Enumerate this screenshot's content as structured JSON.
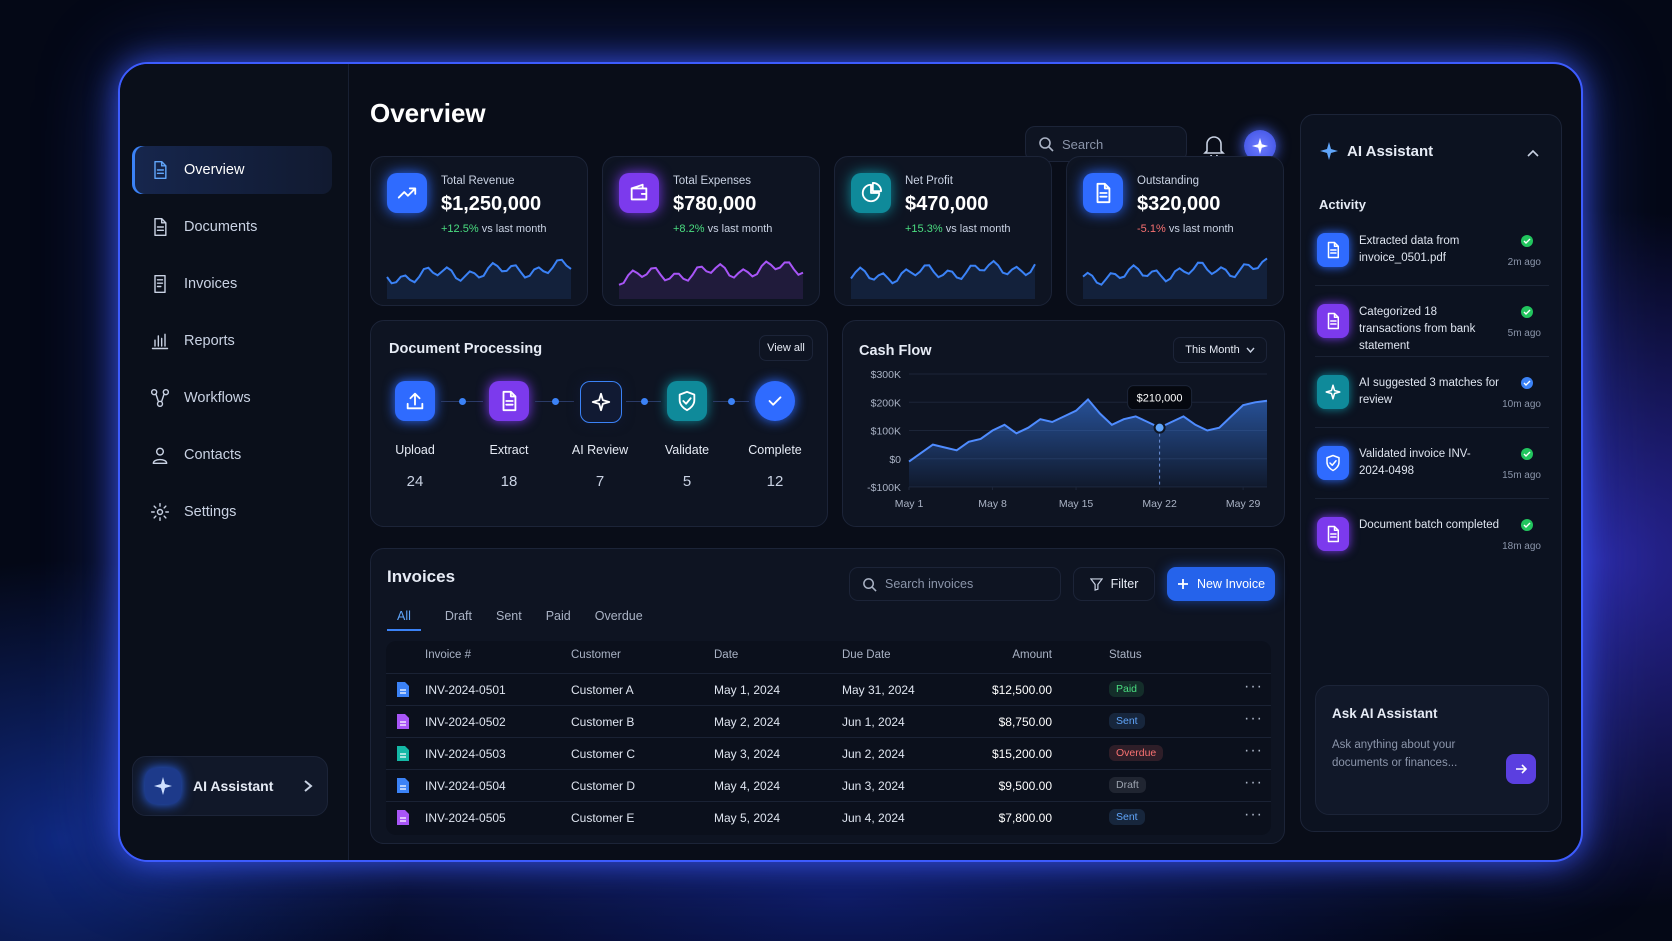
{
  "sidebar": {
    "nav": [
      "Overview",
      "Documents",
      "Invoices",
      "Reports",
      "Workflows",
      "Contacts",
      "Settings"
    ],
    "assistant": "AI Assistant"
  },
  "header": {
    "title": "Overview",
    "search": "Search"
  },
  "stats": [
    {
      "label": "Total Revenue",
      "value": "$1,250,000",
      "change": "+12.5%",
      "note": "vs last month",
      "color": "#2f6bff",
      "line_color": "#3b82f6",
      "change_color": "#4ade80"
    },
    {
      "label": "Total Expenses",
      "value": "$780,000",
      "change": "+8.2%",
      "note": "vs last month",
      "color": "#7c3aed",
      "line_color": "#a855f7",
      "change_color": "#4ade80"
    },
    {
      "label": "Net Profit",
      "value": "$470,000",
      "change": "+15.3%",
      "note": "vs last month",
      "color": "#0f8a9a",
      "line_color": "#3b82f6",
      "change_color": "#4ade80"
    },
    {
      "label": "Outstanding",
      "value": "$320,000",
      "change": "-5.1%",
      "note": "vs last month",
      "color": "#2f6bff",
      "line_color": "#3b82f6",
      "change_color": "#f87171"
    }
  ],
  "processing": {
    "title": "Document Processing",
    "action": "View all",
    "steps": [
      {
        "label": "Upload",
        "count": "24"
      },
      {
        "label": "Extract",
        "count": "18"
      },
      {
        "label": "AI Review",
        "count": "7"
      },
      {
        "label": "Validate",
        "count": "5"
      },
      {
        "label": "Complete",
        "count": "12"
      }
    ]
  },
  "cash_flow": {
    "type": "area",
    "title": "Cash Flow",
    "period": "This Month",
    "annotation": "$210,000",
    "x": [
      1,
      2,
      3,
      4,
      5,
      6,
      7,
      8,
      9,
      10,
      11,
      12,
      13,
      14,
      15,
      16,
      17,
      18,
      19,
      20,
      21,
      22,
      23,
      24,
      25,
      26,
      27,
      28,
      29,
      30,
      31
    ],
    "values": [
      -10000,
      20000,
      50000,
      40000,
      30000,
      60000,
      70000,
      100000,
      120000,
      90000,
      110000,
      140000,
      130000,
      150000,
      170000,
      210000,
      160000,
      120000,
      140000,
      150000,
      130000,
      110000,
      130000,
      150000,
      120000,
      100000,
      110000,
      150000,
      190000,
      200000,
      205000
    ],
    "xlim": [
      1,
      31
    ],
    "xticks": [
      {
        "value": 1,
        "label": "May 1"
      },
      {
        "value": 8,
        "label": "May 8"
      },
      {
        "value": 15,
        "label": "May 15"
      },
      {
        "value": 22,
        "label": "May 22"
      },
      {
        "value": 29,
        "label": "May 29"
      }
    ],
    "ylim": [
      -100000,
      300000
    ],
    "yticks": [
      {
        "value": 300000,
        "label": "$300K"
      },
      {
        "value": 200000,
        "label": "$200K"
      },
      {
        "value": 100000,
        "label": "$100K"
      },
      {
        "value": 0,
        "label": "$0"
      },
      {
        "value": -100000,
        "label": "-$100K"
      }
    ],
    "color": "#3b82f6",
    "grid": true
  },
  "invoices": {
    "title": "Invoices",
    "search": "Search invoices",
    "filter": "Filter",
    "new": "New Invoice",
    "tabs": [
      "All",
      "Draft",
      "Sent",
      "Paid",
      "Overdue"
    ],
    "columns": [
      "Invoice #",
      "Customer",
      "Date",
      "Due Date",
      "Amount",
      "Status"
    ],
    "rows": [
      {
        "invoice": "INV-2024-0501",
        "customer": "Customer A",
        "date": "May 1, 2024",
        "due": "May 31, 2024",
        "amount": "$12,500.00",
        "status": "Paid",
        "status_color": "#4ade80",
        "icon_color": "#3b82f6"
      },
      {
        "invoice": "INV-2024-0502",
        "customer": "Customer B",
        "date": "May 2, 2024",
        "due": "Jun 1, 2024",
        "amount": "$8,750.00",
        "status": "Sent",
        "status_color": "#60a5fa",
        "icon_color": "#a855f7"
      },
      {
        "invoice": "INV-2024-0503",
        "customer": "Customer C",
        "date": "May 3, 2024",
        "due": "Jun 2, 2024",
        "amount": "$15,200.00",
        "status": "Overdue",
        "status_color": "#f87171",
        "icon_color": "#14b8a6"
      },
      {
        "invoice": "INV-2024-0504",
        "customer": "Customer D",
        "date": "May 4, 2024",
        "due": "Jun 3, 2024",
        "amount": "$9,500.00",
        "status": "Draft",
        "status_color": "#9ca3af",
        "icon_color": "#3b82f6"
      },
      {
        "invoice": "INV-2024-0505",
        "customer": "Customer E",
        "date": "May 5, 2024",
        "due": "Jun 4, 2024",
        "amount": "$7,800.00",
        "status": "Sent",
        "status_color": "#60a5fa",
        "icon_color": "#a855f7"
      }
    ]
  },
  "assistant": {
    "title": "AI Assistant",
    "section": "Activity",
    "activity": [
      {
        "text": "Extracted data from invoice_0501.pdf",
        "time": "2m ago",
        "icon_color": "#2f6bff",
        "check_color": "#22c55e"
      },
      {
        "text": "Categorized 18 transactions from bank statement",
        "time": "5m ago",
        "icon_color": "#7c3aed",
        "check_color": "#22c55e"
      },
      {
        "text": "AI suggested 3 matches for review",
        "time": "10m ago",
        "icon_color": "#0f8a9a",
        "check_color": "#3b82f6"
      },
      {
        "text": "Validated invoice INV-2024-0498",
        "time": "15m ago",
        "icon_color": "#2f6bff",
        "check_color": "#22c55e"
      },
      {
        "text": "Document batch completed",
        "time": "18m ago",
        "icon_color": "#7c3aed",
        "check_color": "#22c55e"
      }
    ],
    "ask_title": "Ask AI Assistant",
    "ask_placeholder": "Ask anything about your documents or finances..."
  }
}
